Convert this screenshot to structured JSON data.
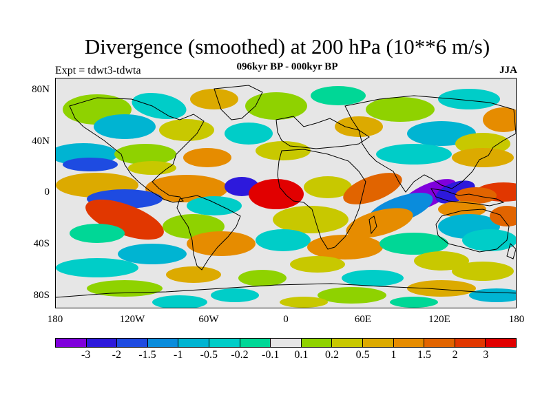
{
  "header": {
    "title": "Divergence (smoothed) at 200 hPa (10**6 m/s)",
    "subtitle": "096kyr BP - 000kyr BP",
    "experiment": "Expt = tdwt3-tdwta",
    "season": "JJA"
  },
  "axes": {
    "lat_labels": [
      "80N",
      "40N",
      "0",
      "40S",
      "80S"
    ],
    "lon_labels": [
      "180",
      "120W",
      "60W",
      "0",
      "60E",
      "120E",
      "180"
    ]
  },
  "colorbar": {
    "colors": [
      "#7f00dc",
      "#2d19dc",
      "#1e4be1",
      "#0a8cdc",
      "#00b4d2",
      "#00cdc8",
      "#00d796",
      "#e6e6e6",
      "#8fd200",
      "#c8c800",
      "#dcaa00",
      "#e68c00",
      "#e16400",
      "#e13700",
      "#e10000"
    ],
    "labels": [
      "-3",
      "-2",
      "-1.5",
      "-1",
      "-0.5",
      "-0.2",
      "-0.1",
      "0.1",
      "0.2",
      "0.5",
      "1",
      "1.5",
      "2",
      "3"
    ]
  }
}
